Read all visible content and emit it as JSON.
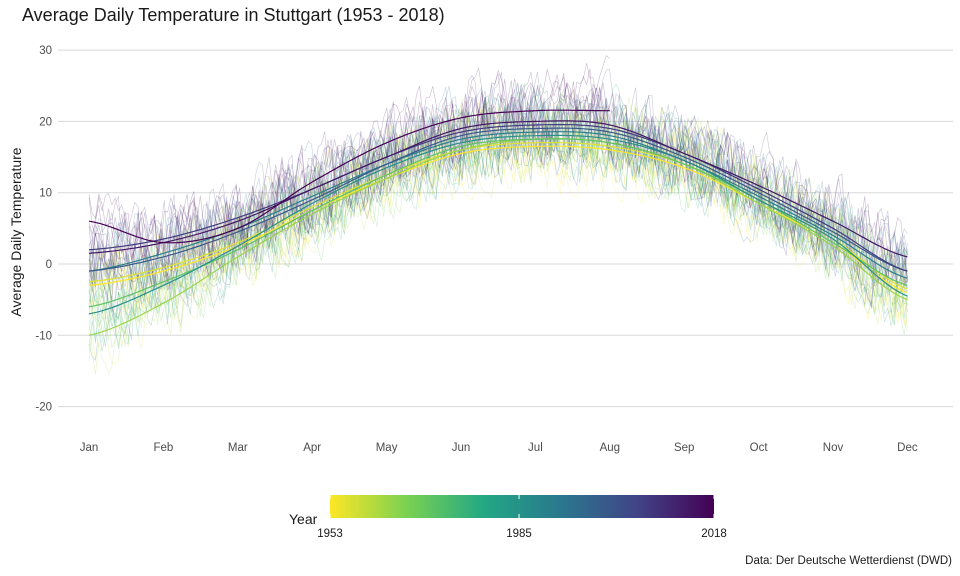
{
  "title": "Average Daily Temperature in Stuttgart (1953 - 2018)",
  "caption": "Data: Der Deutsche Wetterdienst (DWD)",
  "chart_data": {
    "type": "line",
    "title": "Average Daily Temperature in Stuttgart (1953 - 2018)",
    "xlabel": "",
    "ylabel": "Average Daily Temperature",
    "x_ticks": [
      "Jan",
      "Feb",
      "Mar",
      "Apr",
      "May",
      "Jun",
      "Jul",
      "Aug",
      "Sep",
      "Oct",
      "Nov",
      "Dec"
    ],
    "y_ticks": [
      -20,
      -10,
      0,
      10,
      20,
      30
    ],
    "ylim": [
      -23,
      31
    ],
    "grid": true,
    "legend": {
      "title": "Year",
      "type": "colorbar",
      "position": "bottom",
      "palette": "viridis (reversed)",
      "min": 1953,
      "max": 2018,
      "labels": [
        "1953",
        "1985",
        "2018"
      ],
      "colors": [
        "#fde725",
        "#7ad151",
        "#22a884",
        "#2a788e",
        "#414487",
        "#440154"
      ]
    },
    "smoothed_trend_anchor_months": [
      "Jan",
      "Feb",
      "Mar",
      "Apr",
      "May",
      "Jun",
      "Jul",
      "Aug",
      "Sep",
      "Oct",
      "Nov",
      "Dec"
    ],
    "smoothed_trends": [
      {
        "year": 1953,
        "values": [
          -3.0,
          -1.0,
          2.5,
          7.5,
          12.0,
          15.5,
          16.5,
          16.0,
          13.5,
          8.5,
          3.0,
          -4.0
        ]
      },
      {
        "year": 1956,
        "values": [
          -2.5,
          -0.5,
          3.0,
          8.0,
          12.5,
          16.0,
          17.0,
          16.5,
          14.0,
          9.0,
          3.5,
          -3.5
        ]
      },
      {
        "year": 1963,
        "values": [
          -10.0,
          -5.5,
          1.0,
          7.0,
          12.0,
          16.0,
          17.5,
          17.0,
          14.0,
          8.5,
          2.5,
          -5.0
        ]
      },
      {
        "year": 1970,
        "values": [
          -6.0,
          -2.5,
          2.0,
          7.5,
          12.5,
          16.5,
          17.5,
          17.0,
          14.0,
          9.0,
          3.0,
          -3.0
        ]
      },
      {
        "year": 1985,
        "values": [
          -7.0,
          -3.0,
          2.5,
          8.5,
          13.5,
          17.0,
          18.0,
          17.5,
          14.5,
          9.0,
          3.5,
          -4.5
        ]
      },
      {
        "year": 1990,
        "values": [
          -1.0,
          1.5,
          5.0,
          9.5,
          14.0,
          17.5,
          18.5,
          18.0,
          14.5,
          9.5,
          4.0,
          -2.0
        ]
      },
      {
        "year": 2000,
        "values": [
          -1.0,
          1.0,
          4.5,
          9.0,
          14.0,
          18.0,
          19.0,
          18.5,
          15.0,
          10.0,
          4.5,
          -1.0
        ]
      },
      {
        "year": 2007,
        "values": [
          2.0,
          3.5,
          6.5,
          10.5,
          15.0,
          18.5,
          19.5,
          19.0,
          15.5,
          10.5,
          5.0,
          -1.0
        ]
      },
      {
        "year": 2014,
        "values": [
          1.5,
          3.0,
          6.0,
          10.5,
          15.0,
          19.0,
          20.0,
          19.5,
          15.5,
          11.0,
          6.0,
          1.0
        ]
      },
      {
        "year": 2018,
        "values": [
          6.0,
          3.0,
          5.0,
          11.5,
          17.0,
          20.5,
          21.5,
          21.5
        ]
      }
    ]
  }
}
